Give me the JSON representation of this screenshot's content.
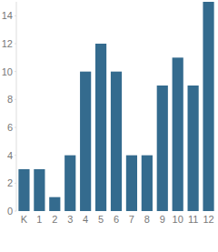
{
  "chart_data": {
    "type": "bar",
    "categories": [
      "K",
      "1",
      "2",
      "3",
      "4",
      "5",
      "6",
      "7",
      "8",
      "9",
      "10",
      "11",
      "12"
    ],
    "values": [
      3,
      3,
      1,
      4,
      10,
      12,
      10,
      4,
      4,
      9,
      11,
      9,
      15
    ],
    "color": "#346b8e",
    "ylim": [
      0,
      15
    ],
    "yticks": [
      0,
      2,
      4,
      6,
      8,
      10,
      12,
      14
    ],
    "grid": false
  }
}
